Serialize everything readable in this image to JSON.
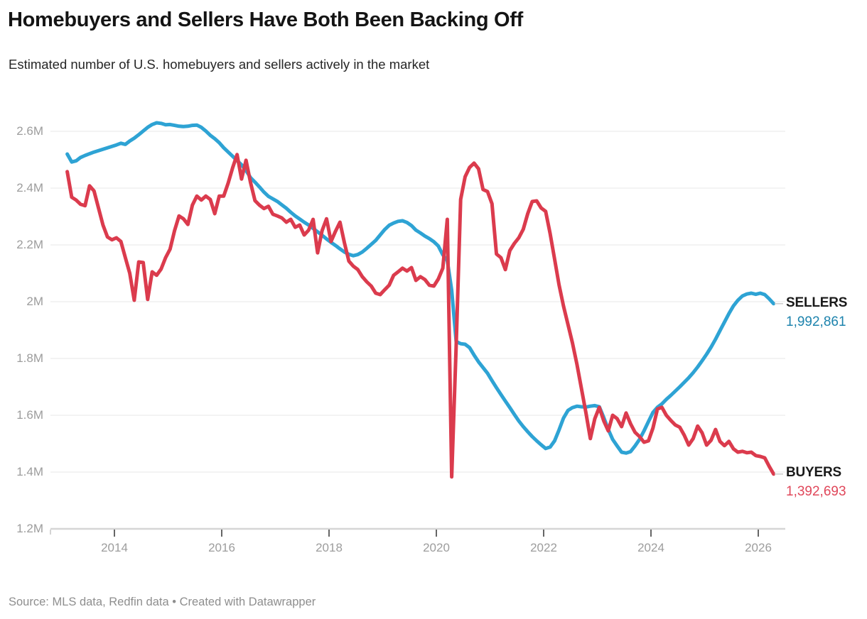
{
  "header": {
    "title": "Homebuyers and Sellers Have Both Been Backing Off",
    "subtitle": "Estimated number of U.S. homebuyers and sellers actively in the market"
  },
  "footer": {
    "source_line": "Source: MLS data, Redfin data • Created with Datawrapper"
  },
  "colors": {
    "sellers_line": "#2EA3D4",
    "sellers_value_text": "#1D83AD",
    "buyers_line": "#DB3B4D",
    "buyers_value_text": "#E0475A",
    "axis_text": "#9D9D9D",
    "grid": "#E7E7E7",
    "baseline": "#D6D6D6",
    "tick": "#333333",
    "leader": "#CCCCCC",
    "title_text": "#141414"
  },
  "chart_data": {
    "type": "line",
    "title": "Homebuyers and Sellers Have Both Been Backing Off",
    "subtitle": "Estimated number of U.S. homebuyers and sellers actively in the market",
    "frequency": "monthly",
    "start_month": "2013-02",
    "end_month": "2026-04",
    "units": "thousands of people",
    "grid": true,
    "legend_position": "end-of-line-labels-right",
    "x_axis": {
      "ticks": [
        2014,
        2016,
        2018,
        2020,
        2022,
        2024,
        2026
      ],
      "range_years": [
        2012.85,
        2026.55
      ]
    },
    "y_axis": {
      "tick_labels": [
        "2.6M",
        "2.4M",
        "2.2M",
        "2M",
        "1.8M",
        "1.6M",
        "1.4M",
        "1.2M"
      ],
      "tick_values": [
        2600,
        2400,
        2200,
        2000,
        1800,
        1600,
        1400,
        1200
      ],
      "range": [
        1200,
        2700
      ]
    },
    "series": [
      {
        "id": "sellers",
        "label": "SELLERS",
        "end_value_label": "1,992,861",
        "end_value": 1992861,
        "color": "#2EA3D4",
        "label_color": "#1D83AD",
        "values_thousands": [
          2520,
          2492,
          2496,
          2508,
          2515,
          2521,
          2527,
          2532,
          2537,
          2542,
          2547,
          2552,
          2558,
          2554,
          2566,
          2576,
          2588,
          2601,
          2614,
          2624,
          2630,
          2628,
          2623,
          2624,
          2621,
          2618,
          2617,
          2618,
          2621,
          2622,
          2614,
          2601,
          2586,
          2574,
          2560,
          2542,
          2527,
          2512,
          2497,
          2482,
          2462,
          2437,
          2421,
          2404,
          2386,
          2371,
          2362,
          2353,
          2341,
          2329,
          2315,
          2302,
          2291,
          2280,
          2270,
          2258,
          2246,
          2234,
          2221,
          2209,
          2198,
          2186,
          2175,
          2167,
          2162,
          2166,
          2175,
          2188,
          2202,
          2216,
          2235,
          2254,
          2269,
          2277,
          2283,
          2285,
          2279,
          2268,
          2252,
          2242,
          2231,
          2222,
          2211,
          2196,
          2165,
          2145,
          2040,
          1860,
          1852,
          1850,
          1838,
          1812,
          1788,
          1768,
          1748,
          1722,
          1697,
          1673,
          1650,
          1627,
          1603,
          1580,
          1560,
          1542,
          1525,
          1510,
          1496,
          1483,
          1488,
          1510,
          1548,
          1590,
          1617,
          1627,
          1632,
          1630,
          1629,
          1632,
          1634,
          1630,
          1592,
          1550,
          1515,
          1492,
          1470,
          1467,
          1472,
          1492,
          1515,
          1545,
          1578,
          1610,
          1628,
          1640,
          1656,
          1670,
          1685,
          1700,
          1716,
          1732,
          1750,
          1770,
          1792,
          1815,
          1840,
          1868,
          1898,
          1928,
          1958,
          1985,
          2005,
          2020,
          2027,
          2030,
          2026,
          2030,
          2025,
          2010,
          1993
        ]
      },
      {
        "id": "buyers",
        "label": "BUYERS",
        "end_value_label": "1,392,693",
        "end_value": 1392693,
        "color": "#DB3B4D",
        "label_color": "#E0475A",
        "values_thousands": [
          2458,
          2368,
          2358,
          2343,
          2338,
          2408,
          2390,
          2330,
          2270,
          2228,
          2218,
          2225,
          2212,
          2155,
          2100,
          2005,
          2140,
          2138,
          2008,
          2105,
          2093,
          2115,
          2155,
          2185,
          2250,
          2302,
          2292,
          2272,
          2340,
          2372,
          2358,
          2372,
          2360,
          2310,
          2372,
          2372,
          2418,
          2472,
          2518,
          2432,
          2498,
          2420,
          2356,
          2340,
          2328,
          2336,
          2308,
          2302,
          2295,
          2280,
          2290,
          2262,
          2270,
          2235,
          2252,
          2290,
          2172,
          2250,
          2292,
          2212,
          2248,
          2280,
          2208,
          2143,
          2125,
          2113,
          2088,
          2070,
          2055,
          2030,
          2025,
          2042,
          2058,
          2093,
          2105,
          2118,
          2108,
          2120,
          2075,
          2088,
          2078,
          2058,
          2055,
          2080,
          2118,
          2290,
          1383,
          1845,
          2360,
          2440,
          2473,
          2488,
          2468,
          2395,
          2388,
          2345,
          2168,
          2155,
          2113,
          2180,
          2205,
          2225,
          2255,
          2310,
          2353,
          2355,
          2330,
          2318,
          2240,
          2150,
          2060,
          1985,
          1920,
          1855,
          1780,
          1695,
          1610,
          1518,
          1588,
          1628,
          1580,
          1545,
          1600,
          1588,
          1560,
          1608,
          1570,
          1540,
          1525,
          1505,
          1510,
          1555,
          1622,
          1628,
          1600,
          1582,
          1566,
          1558,
          1530,
          1495,
          1518,
          1562,
          1538,
          1495,
          1512,
          1550,
          1508,
          1493,
          1508,
          1482,
          1470,
          1473,
          1468,
          1470,
          1458,
          1455,
          1450,
          1420,
          1393
        ]
      }
    ]
  }
}
